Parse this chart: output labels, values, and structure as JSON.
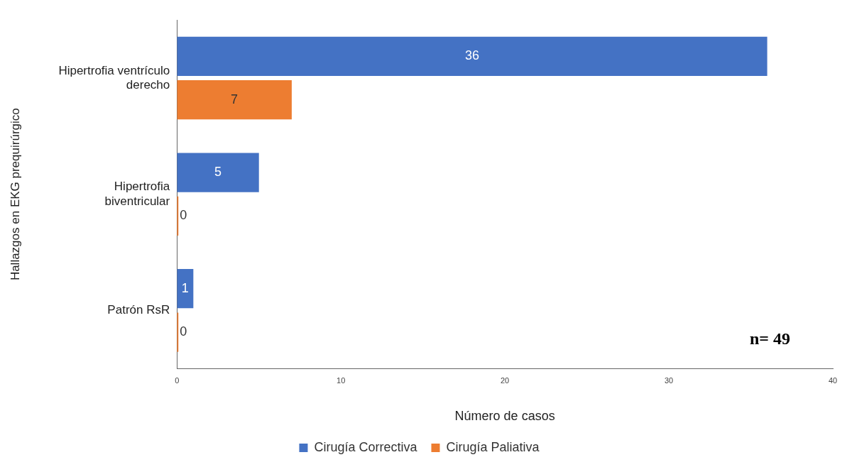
{
  "chart_data": {
    "type": "bar",
    "orientation": "horizontal",
    "xlabel": "Número de casos",
    "ylabel": "Hallazgos en EKG prequirúrgico",
    "categories": [
      "Hipertrofia ventrículo derecho",
      "Hipertrofia biventricular",
      "Patrón RsR"
    ],
    "series": [
      {
        "name": "Cirugía Correctiva",
        "color": "#4472c4",
        "values": [
          36,
          5,
          1
        ]
      },
      {
        "name": "Cirugía Paliativa",
        "color": "#ed7d31",
        "values": [
          7,
          0,
          0
        ]
      }
    ],
    "xlim": [
      0,
      40
    ],
    "xticks": [
      0,
      10,
      20,
      30,
      40
    ],
    "grid": false,
    "legend": "bottom",
    "data_labels": true,
    "annotations": [
      "n= 49"
    ]
  }
}
